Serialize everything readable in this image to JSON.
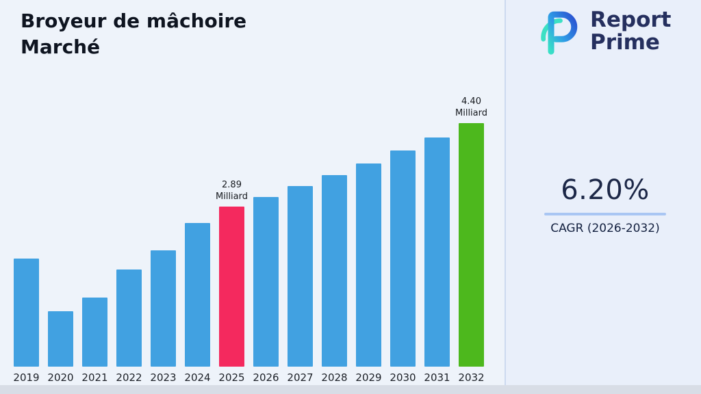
{
  "header": {
    "title_lines": [
      "Broyeur de mâchoire",
      "Marché"
    ]
  },
  "logo": {
    "icon": "reportprime-r-mark",
    "line1": "Report",
    "line2": "Prime"
  },
  "stats": {
    "cagr_value": "6.20%",
    "cagr_label": "CAGR (2026-2032)"
  },
  "chart_data": {
    "type": "bar",
    "title": "Broyeur de mâchoire Marché",
    "unit": "Milliard",
    "categories": [
      "2019",
      "2020",
      "2021",
      "2022",
      "2023",
      "2024",
      "2025",
      "2026",
      "2027",
      "2028",
      "2029",
      "2030",
      "2031",
      "2032"
    ],
    "values": [
      1.95,
      1.0,
      1.25,
      1.75,
      2.1,
      2.6,
      2.89,
      3.07,
      3.26,
      3.46,
      3.67,
      3.9,
      4.14,
      4.4
    ],
    "ylim": [
      0,
      5
    ],
    "grid": false,
    "legend": "none",
    "bar_color_default": "#41a1e1",
    "highlighted_bars": [
      {
        "category": "2025",
        "color": "#f4295e",
        "label_value": "2.89",
        "label_unit": "Milliard"
      },
      {
        "category": "2032",
        "color": "#4db81d",
        "label_value": "4.40",
        "label_unit": "Milliard"
      }
    ]
  }
}
